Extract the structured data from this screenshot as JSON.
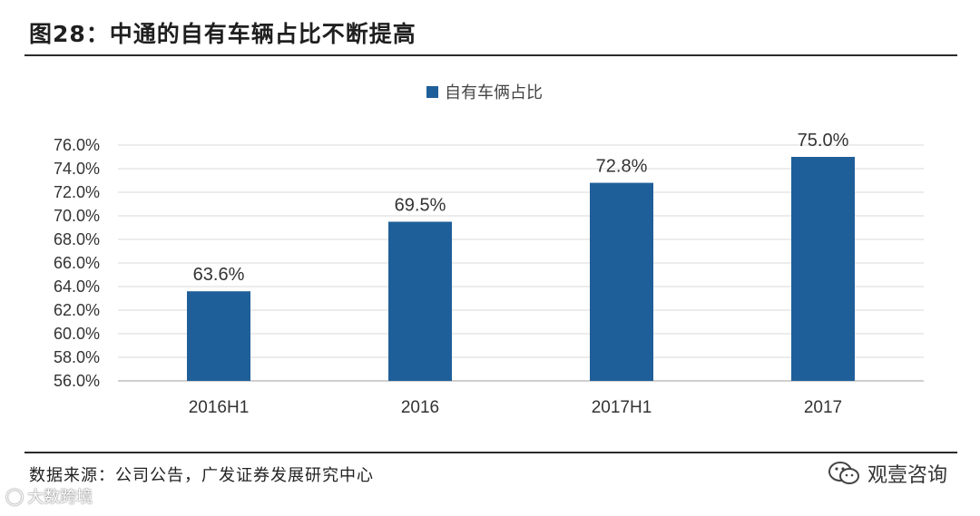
{
  "title": "图28：中通的自有车辆占比不断提高",
  "source": "数据来源：公司公告，广发证券发展研究中心",
  "brand": "观壹咨询",
  "watermark": "大数跨境",
  "colors": {
    "bar": "#1f5f99",
    "grid": "#d9d9d9"
  },
  "chart_data": {
    "type": "bar",
    "categories": [
      "2016H1",
      "2016",
      "2017H1",
      "2017"
    ],
    "series": [
      {
        "name": "自有车俩占比",
        "values": [
          63.6,
          69.5,
          72.8,
          75.0
        ]
      }
    ],
    "data_labels": [
      "63.6%",
      "69.5%",
      "72.8%",
      "75.0%"
    ],
    "ylim": [
      56.0,
      76.0
    ],
    "yticks": [
      "56.0%",
      "58.0%",
      "60.0%",
      "62.0%",
      "64.0%",
      "66.0%",
      "68.0%",
      "70.0%",
      "72.0%",
      "74.0%",
      "76.0%"
    ],
    "grid": true,
    "legend_position": "top-center"
  }
}
